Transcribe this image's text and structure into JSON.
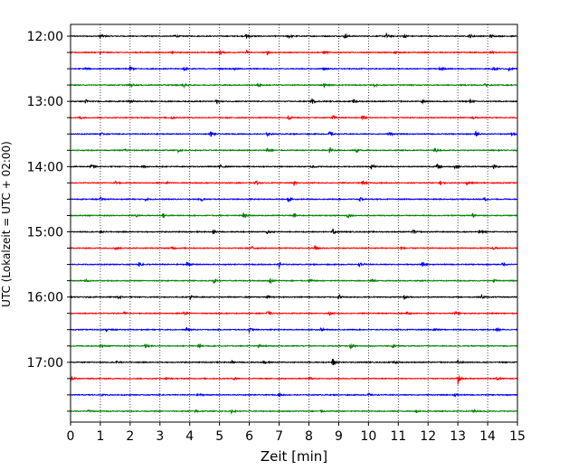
{
  "chart_data": {
    "type": "line",
    "title": "",
    "xlabel": "Zeit  [min]",
    "ylabel": "UTC (Lokalzeit = UTC + 02:00)",
    "xlim": [
      0,
      15
    ],
    "x_ticks": [
      "0",
      "1",
      "2",
      "3",
      "4",
      "5",
      "6",
      "7",
      "8",
      "9",
      "10",
      "11",
      "12",
      "13",
      "14",
      "15"
    ],
    "hour_labels": [
      "12:00",
      "13:00",
      "14:00",
      "15:00",
      "16:00",
      "17:00"
    ],
    "grid": "vertical-dotted",
    "trace_colors": [
      "#000000",
      "#ff0000",
      "#0000ff",
      "#008000"
    ],
    "traces": [
      {
        "start": "12:00",
        "color": "#000000",
        "events": [
          [
            1.0,
            0.5
          ],
          [
            3.5,
            0.4
          ],
          [
            5.9,
            0.5
          ],
          [
            7.3,
            0.4
          ],
          [
            9.2,
            0.5
          ],
          [
            10.6,
            0.5
          ],
          [
            11.2,
            0.5
          ],
          [
            13.4,
            0.4
          ],
          [
            14.1,
            0.4
          ]
        ]
      },
      {
        "start": "12:15",
        "color": "#ff0000",
        "events": [
          [
            1.0,
            0.3
          ],
          [
            3.4,
            0.3
          ],
          [
            5.0,
            0.5
          ],
          [
            5.9,
            0.4
          ],
          [
            6.6,
            0.4
          ],
          [
            8.5,
            0.4
          ],
          [
            10.9,
            0.3
          ],
          [
            14.1,
            0.3
          ]
        ]
      },
      {
        "start": "12:30",
        "color": "#0000ff",
        "events": [
          [
            0.5,
            0.3
          ],
          [
            2.0,
            0.4
          ],
          [
            3.8,
            0.3
          ],
          [
            5.5,
            0.3
          ],
          [
            8.5,
            0.3
          ],
          [
            12.4,
            0.4
          ],
          [
            14.2,
            0.4
          ],
          [
            14.7,
            0.3
          ]
        ]
      },
      {
        "start": "12:45",
        "color": "#008000",
        "events": [
          [
            2.0,
            0.4
          ],
          [
            3.8,
            0.4
          ],
          [
            6.3,
            0.3
          ],
          [
            8.5,
            0.4
          ],
          [
            10.2,
            0.3
          ],
          [
            13.9,
            0.3
          ]
        ]
      },
      {
        "start": "13:00",
        "color": "#000000",
        "events": [
          [
            0.5,
            0.4
          ],
          [
            2.0,
            0.4
          ],
          [
            4.9,
            0.4
          ],
          [
            8.1,
            0.5
          ],
          [
            9.5,
            0.4
          ],
          [
            11.8,
            0.4
          ],
          [
            13.4,
            0.4
          ]
        ]
      },
      {
        "start": "13:15",
        "color": "#ff0000",
        "events": [
          [
            0.3,
            0.3
          ],
          [
            3.4,
            0.3
          ],
          [
            7.3,
            0.4
          ],
          [
            8.8,
            0.5
          ],
          [
            9.8,
            0.4
          ],
          [
            13.5,
            0.3
          ]
        ]
      },
      {
        "start": "13:30",
        "color": "#0000ff",
        "events": [
          [
            1.0,
            0.3
          ],
          [
            4.7,
            0.5
          ],
          [
            6.6,
            0.4
          ],
          [
            8.7,
            0.6
          ],
          [
            10.7,
            0.4
          ],
          [
            13.6,
            0.5
          ],
          [
            14.8,
            0.3
          ]
        ]
      },
      {
        "start": "13:45",
        "color": "#008000",
        "events": [
          [
            1.8,
            0.4
          ],
          [
            3.6,
            0.3
          ],
          [
            6.6,
            0.4
          ],
          [
            8.7,
            0.6
          ],
          [
            9.6,
            0.5
          ],
          [
            12.2,
            0.5
          ]
        ]
      },
      {
        "start": "14:00",
        "color": "#000000",
        "events": [
          [
            0.7,
            0.4
          ],
          [
            2.4,
            0.4
          ],
          [
            5.0,
            0.4
          ],
          [
            8.1,
            0.4
          ],
          [
            10.1,
            0.4
          ],
          [
            12.3,
            0.5
          ],
          [
            12.9,
            0.4
          ],
          [
            14.2,
            0.5
          ]
        ]
      },
      {
        "start": "14:15",
        "color": "#ff0000",
        "events": [
          [
            1.5,
            0.3
          ],
          [
            3.2,
            0.3
          ],
          [
            6.2,
            0.5
          ],
          [
            7.5,
            0.4
          ],
          [
            9.8,
            0.4
          ],
          [
            12.4,
            0.4
          ],
          [
            13.3,
            0.3
          ]
        ]
      },
      {
        "start": "14:30",
        "color": "#0000ff",
        "events": [
          [
            1.0,
            0.3
          ],
          [
            2.5,
            0.3
          ],
          [
            4.4,
            0.3
          ],
          [
            7.3,
            0.5
          ],
          [
            9.7,
            0.4
          ],
          [
            13.9,
            0.4
          ]
        ]
      },
      {
        "start": "14:45",
        "color": "#008000",
        "events": [
          [
            2.2,
            0.3
          ],
          [
            3.1,
            0.5
          ],
          [
            5.8,
            0.5
          ],
          [
            7.5,
            0.4
          ],
          [
            9.3,
            0.5
          ],
          [
            13.5,
            0.4
          ]
        ]
      },
      {
        "start": "15:00",
        "color": "#000000",
        "events": [
          [
            1.0,
            0.3
          ],
          [
            4.8,
            0.4
          ],
          [
            6.6,
            0.5
          ],
          [
            8.8,
            0.5
          ],
          [
            11.5,
            0.4
          ],
          [
            13.7,
            0.4
          ]
        ]
      },
      {
        "start": "15:15",
        "color": "#ff0000",
        "events": [
          [
            1.5,
            0.3
          ],
          [
            3.4,
            0.3
          ],
          [
            6.1,
            0.5
          ],
          [
            8.2,
            0.5
          ],
          [
            11.1,
            0.3
          ],
          [
            14.2,
            0.3
          ]
        ]
      },
      {
        "start": "15:30",
        "color": "#0000ff",
        "events": [
          [
            2.3,
            0.4
          ],
          [
            3.9,
            0.5
          ],
          [
            7.0,
            0.5
          ],
          [
            9.7,
            0.4
          ],
          [
            11.8,
            0.4
          ],
          [
            14.5,
            0.4
          ]
        ]
      },
      {
        "start": "15:45",
        "color": "#008000",
        "events": [
          [
            0.5,
            0.3
          ],
          [
            4.8,
            0.5
          ],
          [
            6.7,
            0.5
          ],
          [
            8.0,
            0.5
          ],
          [
            10.1,
            0.4
          ],
          [
            14.2,
            0.3
          ]
        ]
      },
      {
        "start": "16:00",
        "color": "#000000",
        "events": [
          [
            1.6,
            0.4
          ],
          [
            4.0,
            0.6
          ],
          [
            6.6,
            0.4
          ],
          [
            9.0,
            0.5
          ],
          [
            11.2,
            0.4
          ],
          [
            13.8,
            0.4
          ]
        ]
      },
      {
        "start": "16:15",
        "color": "#ff0000",
        "events": [
          [
            1.8,
            0.3
          ],
          [
            3.8,
            0.4
          ],
          [
            6.6,
            0.4
          ],
          [
            8.7,
            0.4
          ],
          [
            11.3,
            0.3
          ],
          [
            12.9,
            0.5
          ]
        ]
      },
      {
        "start": "16:30",
        "color": "#0000ff",
        "events": [
          [
            1.2,
            0.3
          ],
          [
            3.9,
            0.4
          ],
          [
            6.0,
            0.4
          ],
          [
            8.4,
            0.3
          ],
          [
            12.2,
            0.4
          ],
          [
            14.3,
            0.3
          ]
        ]
      },
      {
        "start": "16:45",
        "color": "#008000",
        "events": [
          [
            1.0,
            0.3
          ],
          [
            2.5,
            0.5
          ],
          [
            4.3,
            0.4
          ],
          [
            6.3,
            0.3
          ],
          [
            9.4,
            0.4
          ],
          [
            10.8,
            0.4
          ]
        ]
      },
      {
        "start": "17:00",
        "color": "#000000",
        "events": [
          [
            1.5,
            0.3
          ],
          [
            5.4,
            0.3
          ],
          [
            6.5,
            0.4
          ],
          [
            8.8,
            0.9
          ],
          [
            10.9,
            0.4
          ],
          [
            13.0,
            0.3
          ]
        ]
      },
      {
        "start": "17:15",
        "color": "#ff0000",
        "events": [
          [
            0.0,
            1.0
          ],
          [
            3.2,
            0.3
          ],
          [
            5.5,
            0.3
          ],
          [
            8.0,
            0.3
          ],
          [
            13.0,
            1.2
          ],
          [
            14.3,
            0.3
          ]
        ]
      },
      {
        "start": "17:30",
        "color": "#0000ff",
        "events": [
          [
            1.0,
            0.2
          ],
          [
            4.3,
            0.3
          ],
          [
            7.0,
            0.3
          ],
          [
            10.0,
            0.3
          ],
          [
            12.9,
            0.3
          ]
        ]
      },
      {
        "start": "17:45",
        "color": "#008000",
        "events": [
          [
            0.6,
            0.3
          ],
          [
            4.2,
            0.3
          ],
          [
            5.4,
            0.3
          ],
          [
            8.4,
            0.3
          ],
          [
            11.6,
            0.3
          ],
          [
            13.5,
            0.3
          ]
        ]
      }
    ]
  }
}
